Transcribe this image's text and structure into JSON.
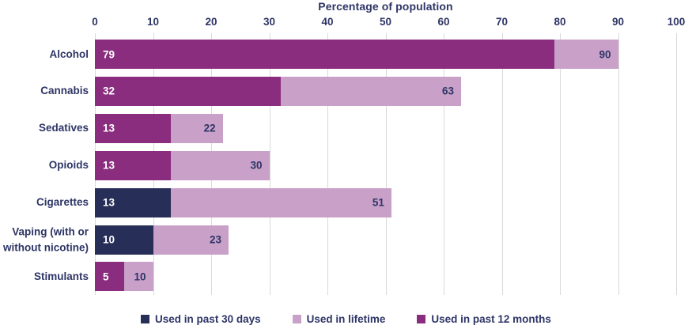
{
  "title": "Percentage of population",
  "colors": {
    "past_30_days": "#272f58",
    "lifetime": "#c9a0c8",
    "past_12_months": "#8b2d7f",
    "text": "#2e3566",
    "gridline": "#d9d9d9",
    "inner_value_text": "#ffffff"
  },
  "axis": {
    "ticks": [
      0,
      10,
      20,
      30,
      40,
      50,
      60,
      70,
      80,
      90,
      100
    ],
    "min": 0,
    "max": 100
  },
  "legend": [
    {
      "label": "Used in past 30 days",
      "color_key": "past_30_days"
    },
    {
      "label": "Used in lifetime",
      "color_key": "lifetime"
    },
    {
      "label": "Used in past 12 months",
      "color_key": "past_12_months"
    }
  ],
  "chart_data": {
    "type": "bar",
    "orientation": "horizontal",
    "title": "Percentage of population",
    "xlabel": "Percentage of population",
    "ylabel": "",
    "xlim": [
      0,
      100
    ],
    "grid": "vertical",
    "legend_position": "bottom",
    "categories": [
      "Alcohol",
      "Cannabis",
      "Sedatives",
      "Opioids",
      "Cigarettes",
      "Vaping (with or without nicotine)",
      "Stimulants"
    ],
    "series": [
      {
        "name": "Used in past 30 days",
        "values": [
          null,
          null,
          null,
          null,
          13,
          10,
          null
        ]
      },
      {
        "name": "Used in lifetime",
        "values": [
          90,
          63,
          22,
          30,
          51,
          23,
          10
        ]
      },
      {
        "name": "Used in past 12 months",
        "values": [
          79,
          32,
          13,
          13,
          null,
          null,
          5
        ]
      }
    ]
  },
  "rows": [
    {
      "label": "Alcohol",
      "inner_value": 79,
      "inner_series": "past_12_months",
      "lifetime_value": 90
    },
    {
      "label": "Cannabis",
      "inner_value": 32,
      "inner_series": "past_12_months",
      "lifetime_value": 63
    },
    {
      "label": "Sedatives",
      "inner_value": 13,
      "inner_series": "past_12_months",
      "lifetime_value": 22
    },
    {
      "label": "Opioids",
      "inner_value": 13,
      "inner_series": "past_12_months",
      "lifetime_value": 30
    },
    {
      "label": "Cigarettes",
      "inner_value": 13,
      "inner_series": "past_30_days",
      "lifetime_value": 51
    },
    {
      "label": "Vaping (with or without nicotine)",
      "inner_value": 10,
      "inner_series": "past_30_days",
      "lifetime_value": 23
    },
    {
      "label": "Stimulants",
      "inner_value": 5,
      "inner_series": "past_12_months",
      "lifetime_value": 10
    }
  ]
}
